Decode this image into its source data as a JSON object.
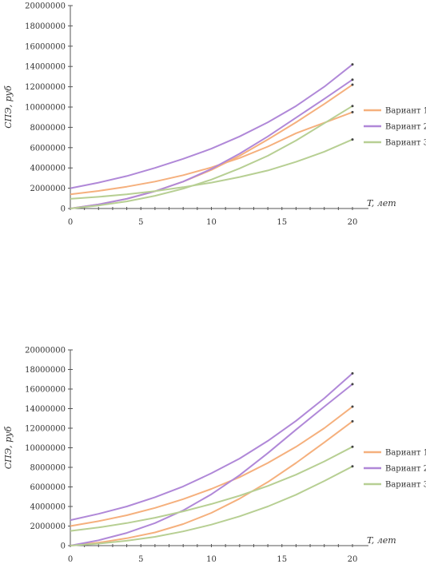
{
  "legend_labels": [
    "Вариант 1",
    "Вариант 2",
    "Вариант 3"
  ],
  "colors": {
    "variant_1": "#f5b07d",
    "variant_2": "#b088d8",
    "variant_3": "#b7cf93",
    "axis": "#555555"
  },
  "chart_data": [
    {
      "type": "line",
      "ylabel": "СПЭ, руб",
      "xlabel": "T, лет",
      "xlim": [
        0,
        20
      ],
      "ylim": [
        0,
        20000000
      ],
      "x_ticks": [
        "0",
        "5",
        "10",
        "15",
        "20"
      ],
      "y_ticks": [
        "0",
        "2000000",
        "4000000",
        "6000000",
        "8000000",
        "10000000",
        "12000000",
        "14000000",
        "16000000",
        "18000000",
        "20000000"
      ],
      "legend_position": "right",
      "x": [
        0,
        2,
        4,
        6,
        8,
        10,
        12,
        14,
        16,
        18,
        20
      ],
      "series": [
        {
          "name": "Вариант 1",
          "color": "#f5b07d",
          "values": [
            1400000,
            1730000,
            2150000,
            2650000,
            3280000,
            4050000,
            4980000,
            6100000,
            7420000,
            8450000,
            9500000
          ]
        },
        {
          "name": "Вариант 1",
          "color": "#f5b07d",
          "values": [
            0,
            400000,
            950000,
            1700000,
            2650000,
            3800000,
            5200000,
            6800000,
            8500000,
            10300000,
            12200000
          ]
        },
        {
          "name": "Вариант 2",
          "color": "#b088d8",
          "values": [
            2000000,
            2550000,
            3200000,
            4000000,
            4900000,
            5900000,
            7100000,
            8500000,
            10100000,
            12000000,
            14200000
          ]
        },
        {
          "name": "Вариант 2",
          "color": "#b088d8",
          "values": [
            0,
            400000,
            950000,
            1700000,
            2650000,
            3900000,
            5400000,
            7100000,
            8950000,
            10800000,
            12700000
          ]
        },
        {
          "name": "Вариант 3",
          "color": "#b7cf93",
          "values": [
            950000,
            1150000,
            1400000,
            1720000,
            2100000,
            2550000,
            3100000,
            3750000,
            4600000,
            5600000,
            6800000
          ]
        },
        {
          "name": "Вариант 3",
          "color": "#b7cf93",
          "values": [
            0,
            300000,
            700000,
            1250000,
            1950000,
            2850000,
            3950000,
            5200000,
            6700000,
            8400000,
            10100000
          ]
        }
      ]
    },
    {
      "type": "line",
      "ylabel": "СПЭ, руб",
      "xlabel": "T, лет",
      "xlim": [
        0,
        20
      ],
      "ylim": [
        0,
        20000000
      ],
      "x_ticks": [
        "0",
        "5",
        "10",
        "15",
        "20"
      ],
      "y_ticks": [
        "0",
        "2000000",
        "4000000",
        "6000000",
        "8000000",
        "10000000",
        "12000000",
        "14000000",
        "16000000",
        "18000000",
        "20000000"
      ],
      "legend_position": "right",
      "x": [
        0,
        2,
        4,
        6,
        8,
        10,
        12,
        14,
        16,
        18,
        20
      ],
      "series": [
        {
          "name": "Вариант 1",
          "color": "#f5b07d",
          "values": [
            2000000,
            2500000,
            3100000,
            3850000,
            4750000,
            5800000,
            7000000,
            8450000,
            10100000,
            12000000,
            14200000
          ]
        },
        {
          "name": "Вариант 1",
          "color": "#f5b07d",
          "values": [
            0,
            300000,
            750000,
            1350000,
            2200000,
            3350000,
            4800000,
            6500000,
            8450000,
            10550000,
            12700000
          ]
        },
        {
          "name": "Вариант 2",
          "color": "#b088d8",
          "values": [
            2600000,
            3250000,
            4000000,
            4950000,
            6050000,
            7400000,
            8900000,
            10700000,
            12750000,
            15050000,
            17600000
          ]
        },
        {
          "name": "Вариант 2",
          "color": "#b088d8",
          "values": [
            0,
            550000,
            1300000,
            2300000,
            3600000,
            5250000,
            7200000,
            9450000,
            11850000,
            14200000,
            16500000
          ]
        },
        {
          "name": "Вариант 3",
          "color": "#b7cf93",
          "values": [
            1500000,
            1850000,
            2300000,
            2850000,
            3500000,
            4250000,
            5100000,
            6100000,
            7250000,
            8600000,
            10100000
          ]
        },
        {
          "name": "Вариант 3",
          "color": "#b7cf93",
          "values": [
            0,
            200000,
            500000,
            900000,
            1450000,
            2150000,
            3000000,
            4000000,
            5200000,
            6600000,
            8100000
          ]
        }
      ]
    }
  ]
}
